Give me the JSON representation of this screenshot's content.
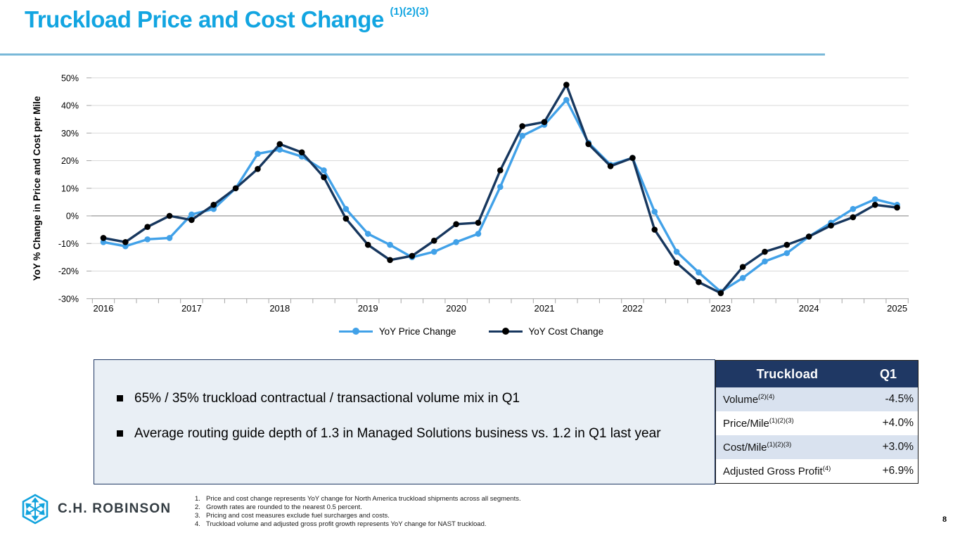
{
  "slide": {
    "title": "Truckload Price and Cost Change",
    "title_superscript": "(1)(2)(3)",
    "page_number": "8"
  },
  "chart_data": {
    "type": "line",
    "ylabel": "YoY % Change in Price and Cost per Mile",
    "ylim": [
      -30,
      50
    ],
    "ytick_values": [
      50,
      40,
      30,
      20,
      10,
      0,
      -10,
      -20,
      -30
    ],
    "ytick_labels": [
      "50%",
      "40%",
      "30%",
      "20%",
      "10%",
      "0%",
      "-10%",
      "-20%",
      "-30%"
    ],
    "x_year_labels": [
      "2016",
      "2017",
      "2018",
      "2019",
      "2020",
      "2021",
      "2022",
      "2023",
      "2024",
      "2025"
    ],
    "categories": [
      "2016 Q1",
      "2016 Q2",
      "2016 Q3",
      "2016 Q4",
      "2017 Q1",
      "2017 Q2",
      "2017 Q3",
      "2017 Q4",
      "2018 Q1",
      "2018 Q2",
      "2018 Q3",
      "2018 Q4",
      "2019 Q1",
      "2019 Q2",
      "2019 Q3",
      "2019 Q4",
      "2020 Q1",
      "2020 Q2",
      "2020 Q3",
      "2020 Q4",
      "2021 Q1",
      "2021 Q2",
      "2021 Q3",
      "2021 Q4",
      "2022 Q1",
      "2022 Q2",
      "2022 Q3",
      "2022 Q4",
      "2023 Q1",
      "2023 Q2",
      "2023 Q3",
      "2023 Q4",
      "2024 Q1",
      "2024 Q2",
      "2024 Q3",
      "2024 Q4",
      "2025 Q1"
    ],
    "series": [
      {
        "name": "YoY Price Change",
        "color": "#41a1e8",
        "marker_color": "#41a1e8",
        "values": [
          -9.5,
          -11,
          -8.5,
          -8,
          0.5,
          2.5,
          10,
          22.5,
          24,
          21.5,
          16.5,
          2.5,
          -6.5,
          -10.5,
          -15,
          -13,
          -9.5,
          -6.5,
          10.5,
          29,
          33,
          42,
          26.5,
          18.5,
          21,
          1.5,
          -13,
          -20.5,
          -27.5,
          -22.5,
          -16.5,
          -13.5,
          -7.5,
          -2.5,
          2.5,
          6,
          4
        ]
      },
      {
        "name": "YoY Cost Change",
        "color": "#17375e",
        "marker_color": "#000000",
        "values": [
          -8,
          -9.5,
          -4,
          0,
          -1.5,
          4,
          10,
          17,
          26,
          23,
          14,
          -1,
          -10.5,
          -16,
          -14.5,
          -9,
          -3,
          -2.5,
          16.5,
          32.5,
          34,
          47.5,
          26,
          18,
          21,
          -5,
          -17,
          -24,
          -28,
          -18.5,
          -13,
          -10.5,
          -7.5,
          -3.5,
          -0.5,
          4,
          3
        ]
      }
    ],
    "grid": true,
    "legend_position": "bottom"
  },
  "callout_box": {
    "bullets": [
      "65% / 35% truckload contractual / transactional volume mix in Q1",
      "Average routing guide depth of 1.3 in Managed Solutions business vs. 1.2 in Q1 last year"
    ]
  },
  "table": {
    "header": {
      "col1": "Truckload",
      "col2": "Q1"
    },
    "rows": [
      {
        "label": "Volume",
        "sup": "(2)(4)",
        "value": "-4.5%"
      },
      {
        "label": "Price/Mile",
        "sup": "(1)(2)(3)",
        "value": "+4.0%"
      },
      {
        "label": "Cost/Mile",
        "sup": "(1)(2)(3)",
        "value": "+3.0%"
      },
      {
        "label": "Adjusted Gross Profit",
        "sup": "(4)",
        "value": "+6.9%"
      }
    ]
  },
  "footnotes": [
    {
      "num": "1.",
      "text": "Price and cost change represents YoY change for North America truckload shipments across all segments."
    },
    {
      "num": "2.",
      "text": "Growth rates are rounded to the nearest 0.5 percent."
    },
    {
      "num": "3.",
      "text": "Pricing and cost measures exclude fuel surcharges and costs."
    },
    {
      "num": "4.",
      "text": "Truckload volume and adjusted gross profit growth represents YoY change for NAST truckload."
    }
  ],
  "logo": {
    "text": "C.H. ROBINSON"
  },
  "colors": {
    "title_accent": "#12a5e1",
    "rule": "#79b8d8",
    "table_header_bg": "#1f3864",
    "table_alt_row_bg": "#d9e2ef",
    "callout_bg": "#e9eff5",
    "grid_line": "#d9d9d9",
    "zero_line": "#7f7f7f"
  }
}
